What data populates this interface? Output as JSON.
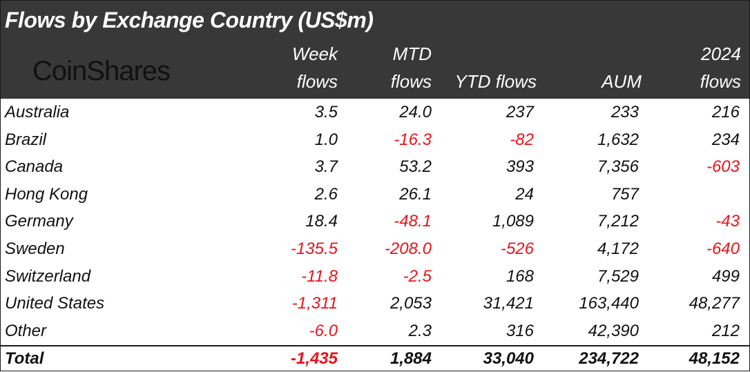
{
  "chart_data": {
    "type": "table",
    "title": "Flows by Exchange Country (US$m)",
    "brand": "CoinShares",
    "columns": [
      {
        "line1": "Week",
        "line2": "flows"
      },
      {
        "line1": "MTD",
        "line2": "flows"
      },
      {
        "line1": "",
        "line2": "YTD flows"
      },
      {
        "line1": "",
        "line2": "AUM"
      },
      {
        "line1": "2024",
        "line2": "flows"
      }
    ],
    "rows": [
      {
        "country": "Australia",
        "values": [
          "3.5",
          "24.0",
          "237",
          "233",
          "216"
        ]
      },
      {
        "country": "Brazil",
        "values": [
          "1.0",
          "-16.3",
          "-82",
          "1,632",
          "234"
        ]
      },
      {
        "country": "Canada",
        "values": [
          "3.7",
          "53.2",
          "393",
          "7,356",
          "-603"
        ]
      },
      {
        "country": "Hong Kong",
        "values": [
          "2.6",
          "26.1",
          "24",
          "757",
          ""
        ]
      },
      {
        "country": "Germany",
        "values": [
          "18.4",
          "-48.1",
          "1,089",
          "7,212",
          "-43"
        ]
      },
      {
        "country": "Sweden",
        "values": [
          "-135.5",
          "-208.0",
          "-526",
          "4,172",
          "-640"
        ]
      },
      {
        "country": "Switzerland",
        "values": [
          "-11.8",
          "-2.5",
          "168",
          "7,529",
          "499"
        ]
      },
      {
        "country": "United States",
        "values": [
          "-1,311",
          "2,053",
          "31,421",
          "163,440",
          "48,277"
        ]
      },
      {
        "country": "Other",
        "values": [
          "-6.0",
          "2.3",
          "316",
          "42,390",
          "212"
        ]
      }
    ],
    "total": {
      "label": "Total",
      "values": [
        "-1,435",
        "1,884",
        "33,040",
        "234,722",
        "48,152"
      ]
    }
  },
  "colors": {
    "header_bg": "#383838",
    "header_text": "#ffffff",
    "negative": "#e8131b",
    "text": "#111111"
  }
}
